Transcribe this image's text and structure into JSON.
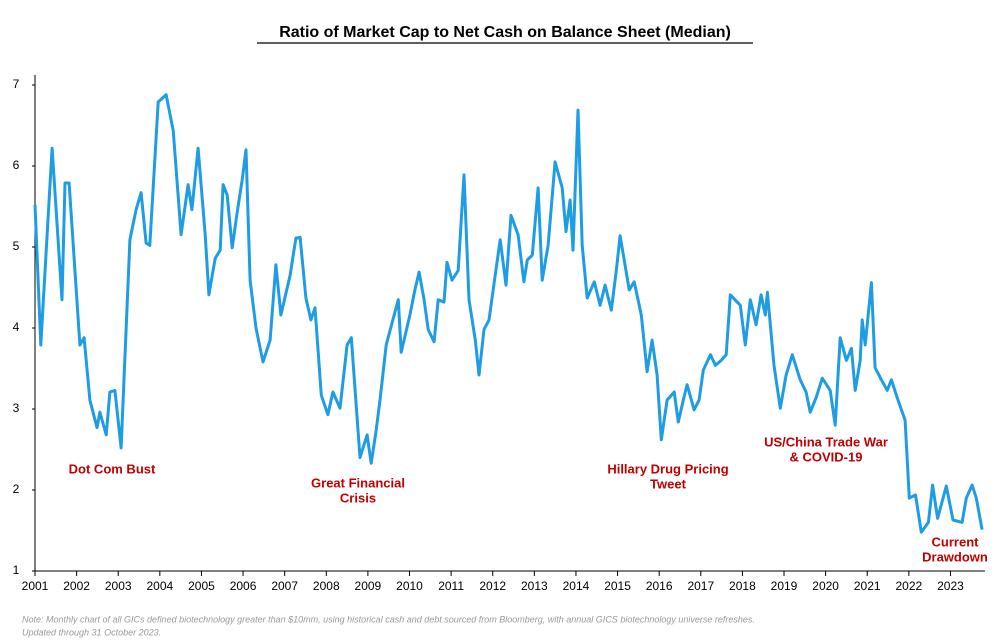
{
  "chart_data": {
    "type": "line",
    "title": "Ratio of Market Cap to Net Cash on Balance Sheet (Median)",
    "annotations": [
      [
        "Dot Com Bust"
      ],
      [
        "Great Financial",
        "Crisis"
      ],
      [
        "Hillary Drug Pricing",
        "Tweet"
      ],
      [
        "US/China Trade War",
        "& COVID-19"
      ],
      [
        "Current",
        "Drawdown"
      ]
    ],
    "note": [
      "Note: Monthly chart of all GICs defined biotechnology greater than $10mm, using historical cash and debt sourced from Bloomberg, with annual GICS biotechnology universe refreshes.",
      "Updated through 31 October 2023."
    ],
    "xlim": [
      2001,
      2023.83
    ],
    "xticks": [
      2001,
      2002,
      2003,
      2004,
      2005,
      2006,
      2007,
      2008,
      2009,
      2010,
      2011,
      2012,
      2013,
      2014,
      2015,
      2016,
      2017,
      2018,
      2019,
      2020,
      2021,
      2022,
      2023
    ],
    "ylim": [
      1,
      7
    ],
    "yticks": [
      1,
      2,
      3,
      4,
      5,
      6,
      7
    ],
    "series": [
      {
        "color": "#1f9de4",
        "x": [
          2001.0,
          2001.14,
          2001.41,
          2001.65,
          2001.72,
          2001.82,
          2002.08,
          2002.18,
          2002.32,
          2002.49,
          2002.56,
          2002.71,
          2002.8,
          2002.92,
          2003.07,
          2003.28,
          2003.43,
          2003.55,
          2003.67,
          2003.76,
          2003.96,
          2004.15,
          2004.32,
          2004.51,
          2004.68,
          2004.77,
          2004.92,
          2005.09,
          2005.18,
          2005.33,
          2005.45,
          2005.52,
          2005.62,
          2005.74,
          2005.86,
          2005.98,
          2006.07,
          2006.17,
          2006.31,
          2006.48,
          2006.65,
          2006.79,
          2006.91,
          2007.13,
          2007.27,
          2007.37,
          2007.51,
          2007.63,
          2007.73,
          2007.88,
          2008.04,
          2008.16,
          2008.33,
          2008.5,
          2008.6,
          2008.81,
          2008.98,
          2009.08,
          2009.2,
          2009.29,
          2009.44,
          2009.61,
          2009.73,
          2009.8,
          2010.01,
          2010.13,
          2010.23,
          2010.35,
          2010.45,
          2010.59,
          2010.69,
          2010.83,
          2010.9,
          2011.02,
          2011.17,
          2011.31,
          2011.43,
          2011.58,
          2011.67,
          2011.79,
          2011.91,
          2012.06,
          2012.18,
          2012.32,
          2012.44,
          2012.61,
          2012.75,
          2012.83,
          2012.95,
          2013.09,
          2013.19,
          2013.33,
          2013.5,
          2013.67,
          2013.76,
          2013.86,
          2013.93,
          2014.05,
          2014.15,
          2014.27,
          2014.44,
          2014.58,
          2014.7,
          2014.85,
          2014.97,
          2015.06,
          2015.16,
          2015.28,
          2015.4,
          2015.57,
          2015.71,
          2015.83,
          2015.95,
          2016.05,
          2016.19,
          2016.36,
          2016.46,
          2016.58,
          2016.67,
          2016.84,
          2016.96,
          2017.06,
          2017.23,
          2017.35,
          2017.49,
          2017.61,
          2017.71,
          2017.95,
          2018.07,
          2018.19,
          2018.33,
          2018.45,
          2018.55,
          2018.6,
          2018.76,
          2018.81,
          2018.91,
          2019.05,
          2019.2,
          2019.39,
          2019.53,
          2019.63,
          2019.77,
          2019.92,
          2020.11,
          2020.23,
          2020.35,
          2020.5,
          2020.62,
          2020.71,
          2020.83,
          2020.88,
          2020.95,
          2021.1,
          2021.19,
          2021.34,
          2021.48,
          2021.58,
          2021.72,
          2021.91,
          2022.01,
          2022.16,
          2022.3,
          2022.47,
          2022.57,
          2022.69,
          2022.9,
          2023.06,
          2023.28,
          2023.38,
          2023.52,
          2023.62,
          2023.76
        ],
        "values": [
          5.52,
          3.79,
          6.22,
          4.35,
          5.79,
          5.79,
          3.79,
          3.88,
          3.11,
          2.77,
          2.96,
          2.68,
          3.21,
          3.23,
          2.52,
          5.09,
          5.46,
          5.67,
          5.05,
          5.02,
          6.79,
          6.88,
          6.44,
          5.15,
          5.77,
          5.46,
          6.22,
          5.15,
          4.41,
          4.86,
          4.96,
          5.77,
          5.64,
          4.99,
          5.43,
          5.83,
          6.2,
          4.59,
          4.0,
          3.58,
          3.85,
          4.78,
          4.16,
          4.65,
          5.11,
          5.12,
          4.37,
          4.1,
          4.25,
          3.17,
          2.93,
          3.21,
          3.01,
          3.79,
          3.88,
          2.4,
          2.68,
          2.33,
          2.74,
          3.11,
          3.79,
          4.12,
          4.35,
          3.7,
          4.16,
          4.47,
          4.69,
          4.35,
          3.98,
          3.83,
          4.35,
          4.32,
          4.81,
          4.59,
          4.71,
          5.89,
          4.35,
          3.85,
          3.42,
          3.98,
          4.1,
          4.65,
          5.09,
          4.53,
          5.39,
          5.15,
          4.57,
          4.84,
          4.9,
          5.73,
          4.59,
          5.02,
          6.05,
          5.73,
          5.19,
          5.58,
          4.96,
          6.69,
          5.02,
          4.37,
          4.57,
          4.28,
          4.53,
          4.22,
          4.71,
          5.14,
          4.84,
          4.47,
          4.57,
          4.16,
          3.46,
          3.85,
          3.42,
          2.62,
          3.11,
          3.21,
          2.84,
          3.11,
          3.3,
          2.99,
          3.11,
          3.48,
          3.67,
          3.54,
          3.6,
          3.67,
          4.41,
          4.28,
          3.79,
          4.35,
          4.04,
          4.41,
          4.16,
          4.44,
          3.54,
          3.36,
          3.01,
          3.42,
          3.67,
          3.36,
          3.21,
          2.96,
          3.14,
          3.38,
          3.23,
          2.8,
          3.88,
          3.6,
          3.75,
          3.23,
          3.6,
          4.1,
          3.79,
          4.56,
          3.51,
          3.36,
          3.23,
          3.36,
          3.14,
          2.86,
          1.9,
          1.94,
          1.48,
          1.6,
          2.06,
          1.65,
          2.05,
          1.63,
          1.6,
          1.9,
          2.06,
          1.9,
          1.51
        ]
      }
    ]
  }
}
